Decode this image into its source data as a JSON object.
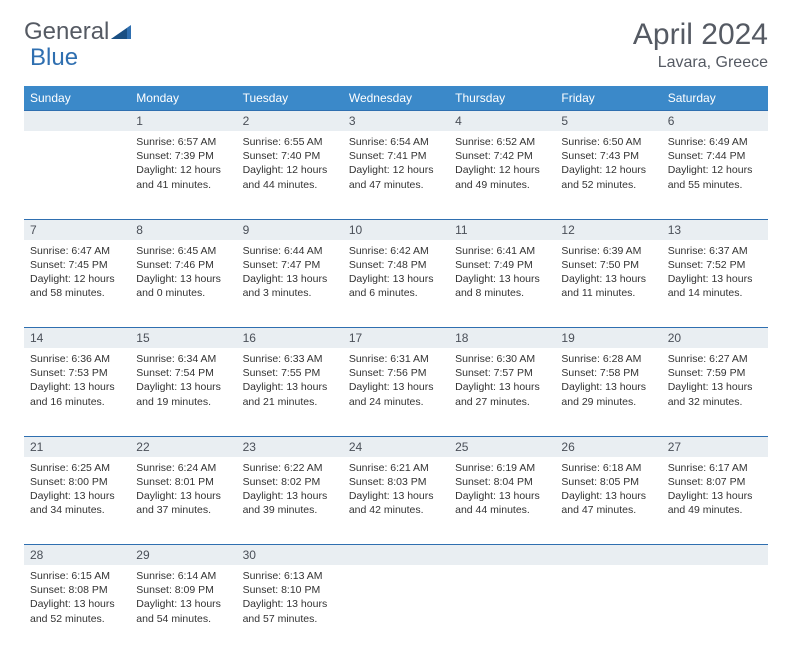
{
  "brand": {
    "part1": "General",
    "part2": "Blue"
  },
  "title": "April 2024",
  "location": "Lavara, Greece",
  "colors": {
    "header_bg": "#3b89c9",
    "header_text": "#ffffff",
    "daynum_bg": "#e9eef2",
    "daynum_border": "#2f6fb0",
    "text": "#333333",
    "title_text": "#555a63"
  },
  "day_headers": [
    "Sunday",
    "Monday",
    "Tuesday",
    "Wednesday",
    "Thursday",
    "Friday",
    "Saturday"
  ],
  "weeks": [
    {
      "nums": [
        "",
        "1",
        "2",
        "3",
        "4",
        "5",
        "6"
      ],
      "cells": [
        null,
        {
          "sunrise": "6:57 AM",
          "sunset": "7:39 PM",
          "d1": "Daylight: 12 hours",
          "d2": "and 41 minutes."
        },
        {
          "sunrise": "6:55 AM",
          "sunset": "7:40 PM",
          "d1": "Daylight: 12 hours",
          "d2": "and 44 minutes."
        },
        {
          "sunrise": "6:54 AM",
          "sunset": "7:41 PM",
          "d1": "Daylight: 12 hours",
          "d2": "and 47 minutes."
        },
        {
          "sunrise": "6:52 AM",
          "sunset": "7:42 PM",
          "d1": "Daylight: 12 hours",
          "d2": "and 49 minutes."
        },
        {
          "sunrise": "6:50 AM",
          "sunset": "7:43 PM",
          "d1": "Daylight: 12 hours",
          "d2": "and 52 minutes."
        },
        {
          "sunrise": "6:49 AM",
          "sunset": "7:44 PM",
          "d1": "Daylight: 12 hours",
          "d2": "and 55 minutes."
        }
      ]
    },
    {
      "nums": [
        "7",
        "8",
        "9",
        "10",
        "11",
        "12",
        "13"
      ],
      "cells": [
        {
          "sunrise": "6:47 AM",
          "sunset": "7:45 PM",
          "d1": "Daylight: 12 hours",
          "d2": "and 58 minutes."
        },
        {
          "sunrise": "6:45 AM",
          "sunset": "7:46 PM",
          "d1": "Daylight: 13 hours",
          "d2": "and 0 minutes."
        },
        {
          "sunrise": "6:44 AM",
          "sunset": "7:47 PM",
          "d1": "Daylight: 13 hours",
          "d2": "and 3 minutes."
        },
        {
          "sunrise": "6:42 AM",
          "sunset": "7:48 PM",
          "d1": "Daylight: 13 hours",
          "d2": "and 6 minutes."
        },
        {
          "sunrise": "6:41 AM",
          "sunset": "7:49 PM",
          "d1": "Daylight: 13 hours",
          "d2": "and 8 minutes."
        },
        {
          "sunrise": "6:39 AM",
          "sunset": "7:50 PM",
          "d1": "Daylight: 13 hours",
          "d2": "and 11 minutes."
        },
        {
          "sunrise": "6:37 AM",
          "sunset": "7:52 PM",
          "d1": "Daylight: 13 hours",
          "d2": "and 14 minutes."
        }
      ]
    },
    {
      "nums": [
        "14",
        "15",
        "16",
        "17",
        "18",
        "19",
        "20"
      ],
      "cells": [
        {
          "sunrise": "6:36 AM",
          "sunset": "7:53 PM",
          "d1": "Daylight: 13 hours",
          "d2": "and 16 minutes."
        },
        {
          "sunrise": "6:34 AM",
          "sunset": "7:54 PM",
          "d1": "Daylight: 13 hours",
          "d2": "and 19 minutes."
        },
        {
          "sunrise": "6:33 AM",
          "sunset": "7:55 PM",
          "d1": "Daylight: 13 hours",
          "d2": "and 21 minutes."
        },
        {
          "sunrise": "6:31 AM",
          "sunset": "7:56 PM",
          "d1": "Daylight: 13 hours",
          "d2": "and 24 minutes."
        },
        {
          "sunrise": "6:30 AM",
          "sunset": "7:57 PM",
          "d1": "Daylight: 13 hours",
          "d2": "and 27 minutes."
        },
        {
          "sunrise": "6:28 AM",
          "sunset": "7:58 PM",
          "d1": "Daylight: 13 hours",
          "d2": "and 29 minutes."
        },
        {
          "sunrise": "6:27 AM",
          "sunset": "7:59 PM",
          "d1": "Daylight: 13 hours",
          "d2": "and 32 minutes."
        }
      ]
    },
    {
      "nums": [
        "21",
        "22",
        "23",
        "24",
        "25",
        "26",
        "27"
      ],
      "cells": [
        {
          "sunrise": "6:25 AM",
          "sunset": "8:00 PM",
          "d1": "Daylight: 13 hours",
          "d2": "and 34 minutes."
        },
        {
          "sunrise": "6:24 AM",
          "sunset": "8:01 PM",
          "d1": "Daylight: 13 hours",
          "d2": "and 37 minutes."
        },
        {
          "sunrise": "6:22 AM",
          "sunset": "8:02 PM",
          "d1": "Daylight: 13 hours",
          "d2": "and 39 minutes."
        },
        {
          "sunrise": "6:21 AM",
          "sunset": "8:03 PM",
          "d1": "Daylight: 13 hours",
          "d2": "and 42 minutes."
        },
        {
          "sunrise": "6:19 AM",
          "sunset": "8:04 PM",
          "d1": "Daylight: 13 hours",
          "d2": "and 44 minutes."
        },
        {
          "sunrise": "6:18 AM",
          "sunset": "8:05 PM",
          "d1": "Daylight: 13 hours",
          "d2": "and 47 minutes."
        },
        {
          "sunrise": "6:17 AM",
          "sunset": "8:07 PM",
          "d1": "Daylight: 13 hours",
          "d2": "and 49 minutes."
        }
      ]
    },
    {
      "nums": [
        "28",
        "29",
        "30",
        "",
        "",
        "",
        ""
      ],
      "cells": [
        {
          "sunrise": "6:15 AM",
          "sunset": "8:08 PM",
          "d1": "Daylight: 13 hours",
          "d2": "and 52 minutes."
        },
        {
          "sunrise": "6:14 AM",
          "sunset": "8:09 PM",
          "d1": "Daylight: 13 hours",
          "d2": "and 54 minutes."
        },
        {
          "sunrise": "6:13 AM",
          "sunset": "8:10 PM",
          "d1": "Daylight: 13 hours",
          "d2": "and 57 minutes."
        },
        null,
        null,
        null,
        null
      ]
    }
  ],
  "labels": {
    "sunrise": "Sunrise: ",
    "sunset": "Sunset: "
  }
}
